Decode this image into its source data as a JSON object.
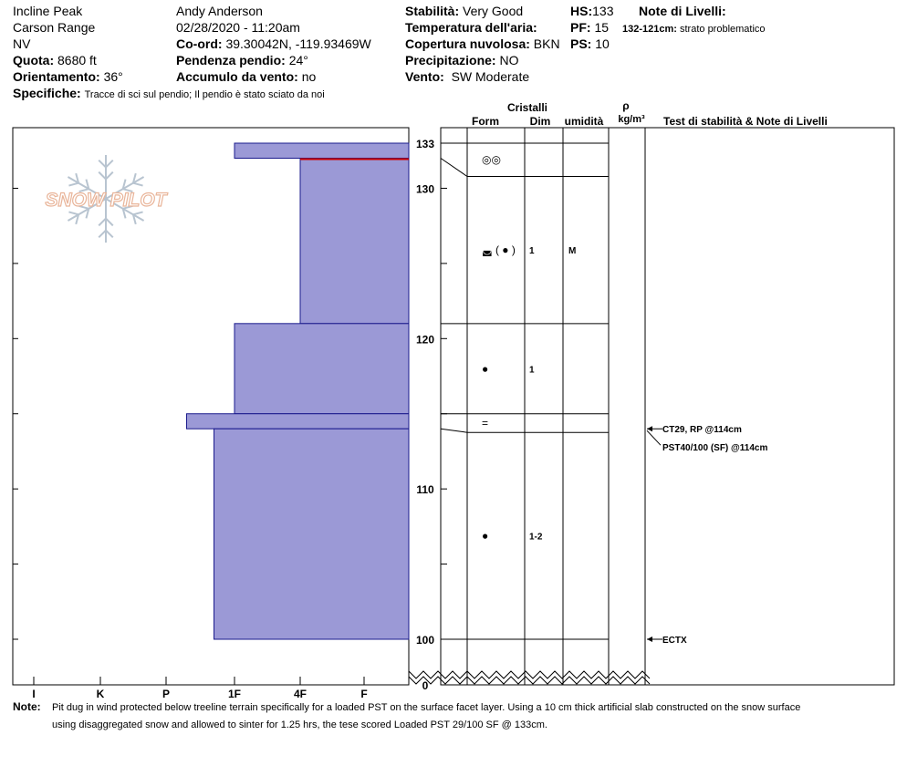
{
  "header": {
    "location": "Incline Peak",
    "range": "Carson Range",
    "state": "NV",
    "elevation_label": "Quota:",
    "elevation": "8680 ft",
    "aspect_label": "Orientamento:",
    "aspect": "36°",
    "specifics_label": "Specifiche:",
    "specifics": "Tracce di sci sul pendio;  Il pendio è stato sciato da noi",
    "observer": "Andy Anderson",
    "datetime": "02/28/2020 - 11:20am",
    "coord_label": "Co-ord:",
    "coord": "39.30042N, -119.93469W",
    "slope_label": "Pendenza pendio:",
    "slope": "24°",
    "wind_load_label": "Accumulo da vento:",
    "wind_load": "no",
    "stability_label": "Stabilità:",
    "stability": "Very Good",
    "air_temp_label": "Temperatura dell'aria:",
    "cloud_label": "Copertura nuvolosa:",
    "cloud": "BKN",
    "precip_label": "Precipitazione:",
    "precip": "NO",
    "wind_label": "Vento:",
    "wind": "SW Moderate",
    "hs_label": "HS:",
    "hs": "133",
    "pf_label": "PF:",
    "pf": "15",
    "ps_label": "PS:",
    "ps": "10",
    "layer_notes_title": "Note di Livelli:",
    "layer_note_range": "132-121cm:",
    "layer_note_text": "strato problematico"
  },
  "columns": {
    "crystals": "Cristalli",
    "form": "Form",
    "dim": "Dim",
    "humidity": "umidità",
    "rho": "ρ",
    "density_unit": "kg/m³",
    "tests": "Test di stabilità & Note di Livelli"
  },
  "notes": {
    "label": "Note:",
    "line1": "Pit dug in wind protected below treeline terrain specifically for a loaded PST on the surface facet layer. Using a 10 cm thick artificial slab constructed on the snow surface",
    "line2": "using disaggregated snow and allowed to sinter for 1.25 hrs, the tese scored Loaded PST 29/100 SF @ 133cm."
  },
  "logo": {
    "text": "SNOW PILOT"
  },
  "colors": {
    "layer_fill": "#9b99d6",
    "layer_stroke": "#1a1a8c",
    "accent_line": "#cc0000"
  },
  "chart_data": {
    "type": "snow_profile",
    "hardness_scale": [
      "I",
      "K",
      "P",
      "1F",
      "4F",
      "F"
    ],
    "depth_ticks": [
      0,
      100,
      110,
      120,
      130,
      133
    ],
    "ylim": [
      100,
      133
    ],
    "layers": [
      {
        "top": 133,
        "bottom": 132,
        "hardness_index": 3
      },
      {
        "top": 132,
        "bottom": 121,
        "hardness_index": 4
      },
      {
        "top": 121,
        "bottom": 115,
        "hardness_index": 3
      },
      {
        "top": 115,
        "bottom": 114,
        "hardness_index": 2.3
      },
      {
        "top": 114,
        "bottom": 100,
        "hardness_index": 2.7
      }
    ],
    "crystal_rows": [
      {
        "top": 133,
        "bottom": 132,
        "form": "◎◎",
        "dim": "",
        "humidity": ""
      },
      {
        "top": 132,
        "bottom": 121,
        "form": "◛ ( ● )",
        "dim": "1",
        "humidity": "M"
      },
      {
        "top": 121,
        "bottom": 115,
        "form": "●",
        "dim": "1",
        "humidity": ""
      },
      {
        "top": 115,
        "bottom": 114,
        "form": "=",
        "dim": "",
        "humidity": ""
      },
      {
        "top": 114,
        "bottom": 100,
        "form": "●",
        "dim": "1-2",
        "humidity": ""
      }
    ],
    "tests": [
      {
        "depth": 114,
        "text": "CT29, RP @114cm"
      },
      {
        "depth": 114,
        "text": "PST40/100 (SF) @114cm"
      },
      {
        "depth": 100,
        "text": "ECTX"
      }
    ]
  }
}
